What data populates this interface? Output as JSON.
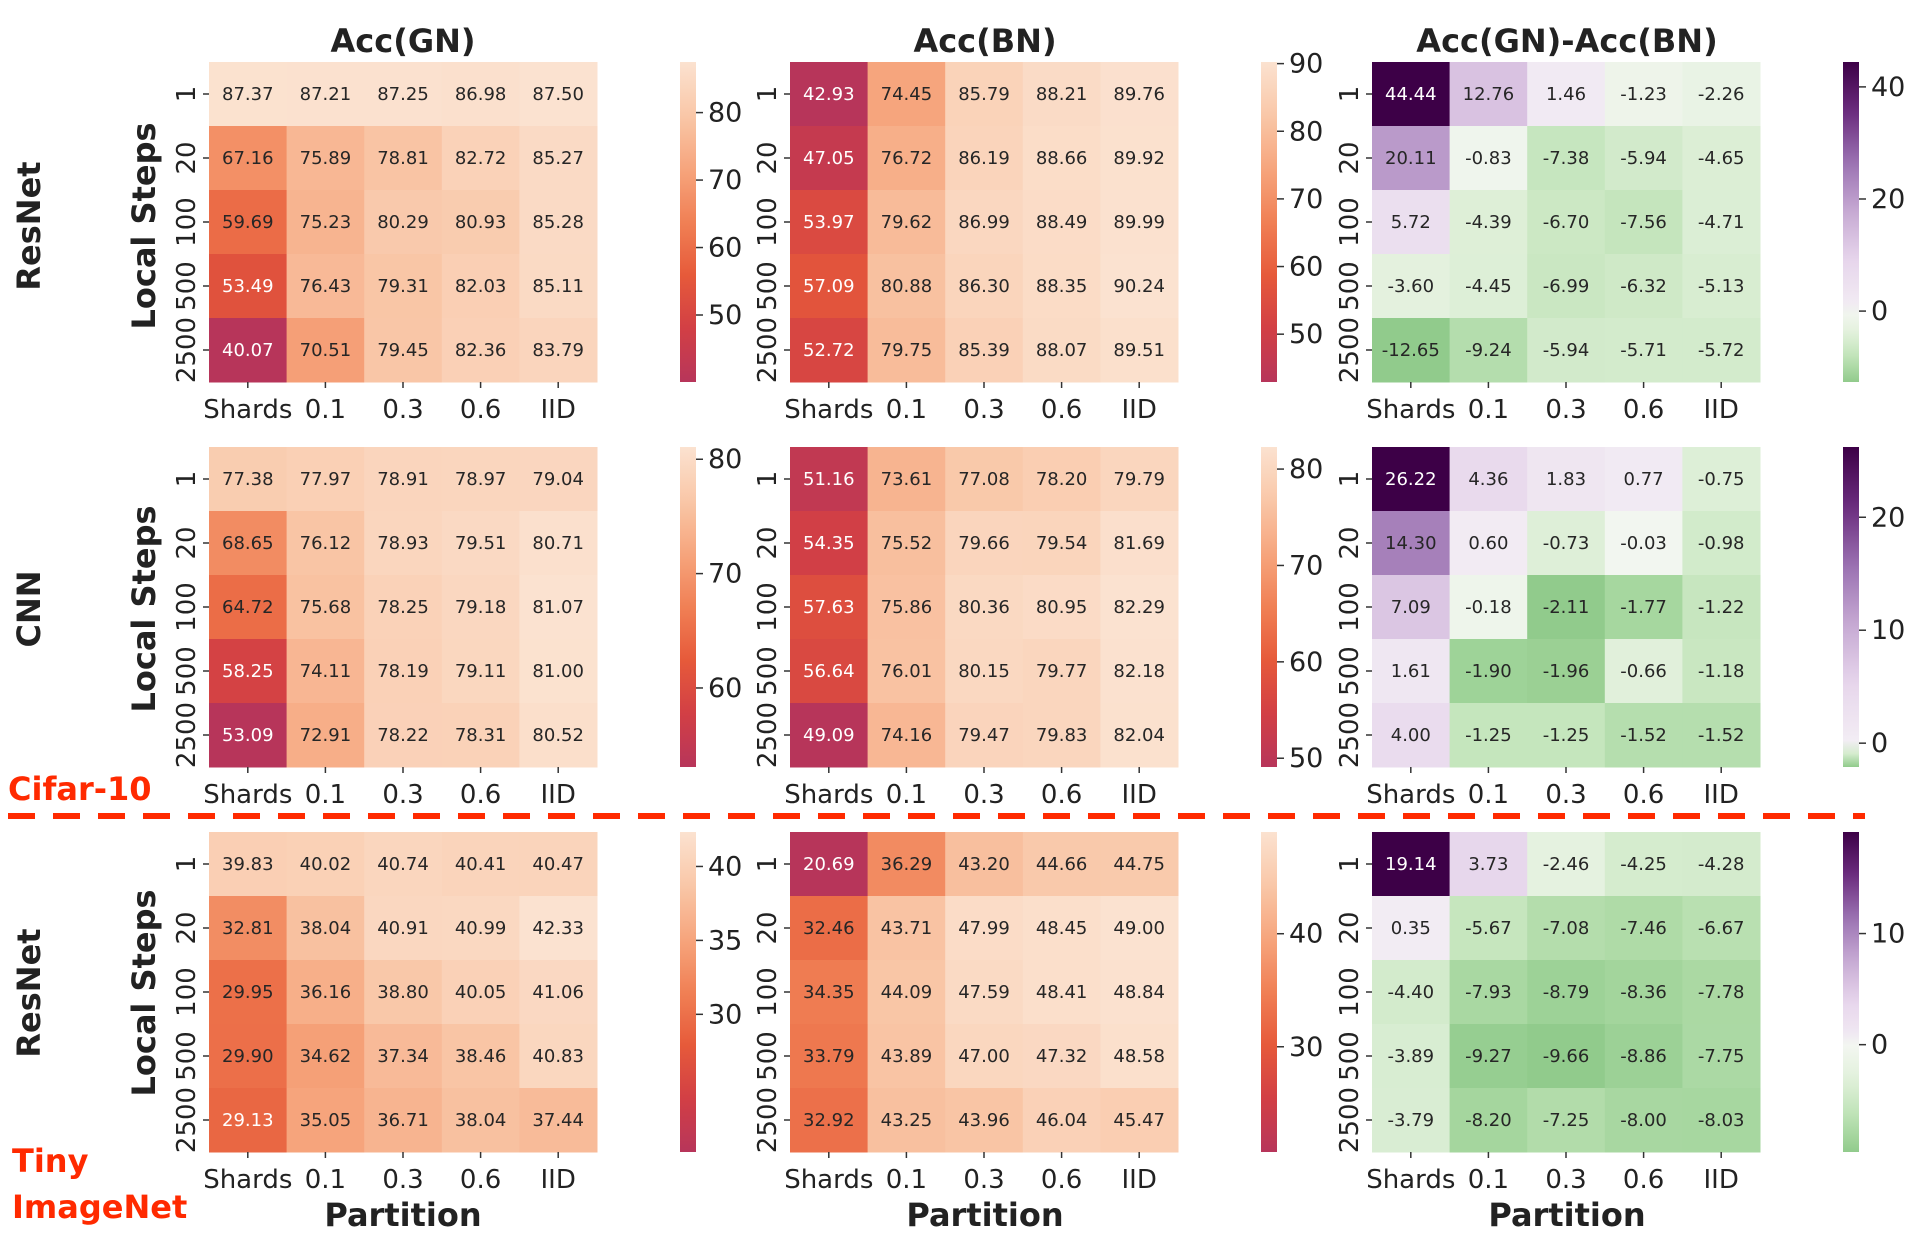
{
  "chart_data": {
    "type": "heatmap",
    "column_titles": [
      "Acc(GN)",
      "Acc(BN)",
      "Acc(GN)-Acc(BN)"
    ],
    "row_labels": [
      "ResNet",
      "CNN",
      "ResNet"
    ],
    "dataset_labels": {
      "cifar": "Cifar-10",
      "tiny_line1": "Tiny",
      "tiny_line2": "ImageNet"
    },
    "xlabel": "Partition",
    "ylabel": "Local Steps",
    "x_categories": [
      "Shards",
      "0.1",
      "0.3",
      "0.6",
      "IID"
    ],
    "y_categories": [
      "1",
      "20",
      "100",
      "500",
      "2500"
    ],
    "colors": {
      "diverging_low": "#5aae61",
      "diverging_mid": "#f7f7f7",
      "diverging_high": "#40004b",
      "divider": "#ff2a00"
    },
    "panels": [
      {
        "title": "Acc(GN)",
        "row_label": "ResNet",
        "dataset": "Cifar-10",
        "cmap": "rocket_r",
        "vmin": 40.07,
        "vmax": 87.5,
        "cbar_ticks": [
          "50",
          "60",
          "70",
          "80"
        ],
        "values": [
          [
            "87.37",
            "87.21",
            "87.25",
            "86.98",
            "87.50"
          ],
          [
            "67.16",
            "75.89",
            "78.81",
            "82.72",
            "85.27"
          ],
          [
            "59.69",
            "75.23",
            "80.29",
            "80.93",
            "85.28"
          ],
          [
            "53.49",
            "76.43",
            "79.31",
            "82.03",
            "85.11"
          ],
          [
            "40.07",
            "70.51",
            "79.45",
            "82.36",
            "83.79"
          ]
        ]
      },
      {
        "title": "Acc(BN)",
        "row_label": "ResNet",
        "dataset": "Cifar-10",
        "cmap": "rocket_r",
        "vmin": 42.93,
        "vmax": 90.24,
        "cbar_ticks": [
          "50",
          "60",
          "70",
          "80",
          "90"
        ],
        "values": [
          [
            "42.93",
            "74.45",
            "85.79",
            "88.21",
            "89.76"
          ],
          [
            "47.05",
            "76.72",
            "86.19",
            "88.66",
            "89.92"
          ],
          [
            "53.97",
            "79.62",
            "86.99",
            "88.49",
            "89.99"
          ],
          [
            "57.09",
            "80.88",
            "86.30",
            "88.35",
            "90.24"
          ],
          [
            "52.72",
            "79.75",
            "85.39",
            "88.07",
            "89.51"
          ]
        ]
      },
      {
        "title": "Acc(GN)-Acc(BN)",
        "row_label": "ResNet",
        "dataset": "Cifar-10",
        "cmap": "PRGn_r",
        "vmin": -12.65,
        "vmax": 44.44,
        "cbar_ticks": [
          "0",
          "20",
          "40"
        ],
        "values": [
          [
            "44.44",
            "12.76",
            "1.46",
            "-1.23",
            "-2.26"
          ],
          [
            "20.11",
            "-0.83",
            "-7.38",
            "-5.94",
            "-4.65"
          ],
          [
            "5.72",
            "-4.39",
            "-6.70",
            "-7.56",
            "-4.71"
          ],
          [
            "-3.60",
            "-4.45",
            "-6.99",
            "-6.32",
            "-5.13"
          ],
          [
            "-12.65",
            "-9.24",
            "-5.94",
            "-5.71",
            "-5.72"
          ]
        ]
      },
      {
        "title": "Acc(GN)",
        "row_label": "CNN",
        "dataset": "Cifar-10",
        "cmap": "rocket_r",
        "vmin": 53.09,
        "vmax": 81.07,
        "cbar_ticks": [
          "60",
          "70",
          "80"
        ],
        "values": [
          [
            "77.38",
            "77.97",
            "78.91",
            "78.97",
            "79.04"
          ],
          [
            "68.65",
            "76.12",
            "78.93",
            "79.51",
            "80.71"
          ],
          [
            "64.72",
            "75.68",
            "78.25",
            "79.18",
            "81.07"
          ],
          [
            "58.25",
            "74.11",
            "78.19",
            "79.11",
            "81.00"
          ],
          [
            "53.09",
            "72.91",
            "78.22",
            "78.31",
            "80.52"
          ]
        ]
      },
      {
        "title": "Acc(BN)",
        "row_label": "CNN",
        "dataset": "Cifar-10",
        "cmap": "rocket_r",
        "vmin": 49.09,
        "vmax": 82.29,
        "cbar_ticks": [
          "50",
          "60",
          "70",
          "80"
        ],
        "values": [
          [
            "51.16",
            "73.61",
            "77.08",
            "78.20",
            "79.79"
          ],
          [
            "54.35",
            "75.52",
            "79.66",
            "79.54",
            "81.69"
          ],
          [
            "57.63",
            "75.86",
            "80.36",
            "80.95",
            "82.29"
          ],
          [
            "56.64",
            "76.01",
            "80.15",
            "79.77",
            "82.18"
          ],
          [
            "49.09",
            "74.16",
            "79.47",
            "79.83",
            "82.04"
          ]
        ]
      },
      {
        "title": "Acc(GN)-Acc(BN)",
        "row_label": "CNN",
        "dataset": "Cifar-10",
        "cmap": "PRGn_r",
        "vmin": -2.11,
        "vmax": 26.22,
        "cbar_ticks": [
          "0",
          "10",
          "20"
        ],
        "values": [
          [
            "26.22",
            "4.36",
            "1.83",
            "0.77",
            "-0.75"
          ],
          [
            "14.30",
            "0.60",
            "-0.73",
            "-0.03",
            "-0.98"
          ],
          [
            "7.09",
            "-0.18",
            "-2.11",
            "-1.77",
            "-1.22"
          ],
          [
            "1.61",
            "-1.90",
            "-1.96",
            "-0.66",
            "-1.18"
          ],
          [
            "4.00",
            "-1.25",
            "-1.25",
            "-1.52",
            "-1.52"
          ]
        ]
      },
      {
        "title": "Acc(GN)",
        "row_label": "ResNet",
        "dataset": "Tiny ImageNet",
        "cmap": "rocket_r",
        "vmin": 20.69,
        "vmax": 42.33,
        "cbar_ticks": [
          "30",
          "35",
          "40"
        ],
        "values": [
          [
            "39.83",
            "40.02",
            "40.74",
            "40.41",
            "40.47"
          ],
          [
            "32.81",
            "38.04",
            "40.91",
            "40.99",
            "42.33"
          ],
          [
            "29.95",
            "36.16",
            "38.80",
            "40.05",
            "41.06"
          ],
          [
            "29.90",
            "34.62",
            "37.34",
            "38.46",
            "40.83"
          ],
          [
            "29.13",
            "35.05",
            "36.71",
            "38.04",
            "37.44"
          ]
        ]
      },
      {
        "title": "Acc(BN)",
        "row_label": "ResNet",
        "dataset": "Tiny ImageNet",
        "cmap": "rocket_r",
        "vmin": 20.69,
        "vmax": 49.0,
        "cbar_ticks": [
          "30",
          "40"
        ],
        "values": [
          [
            "20.69",
            "36.29",
            "43.20",
            "44.66",
            "44.75"
          ],
          [
            "32.46",
            "43.71",
            "47.99",
            "48.45",
            "49.00"
          ],
          [
            "34.35",
            "44.09",
            "47.59",
            "48.41",
            "48.84"
          ],
          [
            "33.79",
            "43.89",
            "47.00",
            "47.32",
            "48.58"
          ],
          [
            "32.92",
            "43.25",
            "43.96",
            "46.04",
            "45.47"
          ]
        ]
      },
      {
        "title": "Acc(GN)-Acc(BN)",
        "row_label": "ResNet",
        "dataset": "Tiny ImageNet",
        "cmap": "PRGn_r",
        "vmin": -9.66,
        "vmax": 19.14,
        "cbar_ticks": [
          "0",
          "10"
        ],
        "values": [
          [
            "19.14",
            "3.73",
            "-2.46",
            "-4.25",
            "-4.28"
          ],
          [
            "0.35",
            "-5.67",
            "-7.08",
            "-7.46",
            "-6.67"
          ],
          [
            "-4.40",
            "-7.93",
            "-8.79",
            "-8.36",
            "-7.78"
          ],
          [
            "-3.89",
            "-9.27",
            "-9.66",
            "-8.86",
            "-7.75"
          ],
          [
            "-3.79",
            "-8.20",
            "-7.25",
            "-8.00",
            "-8.03"
          ]
        ]
      }
    ]
  }
}
